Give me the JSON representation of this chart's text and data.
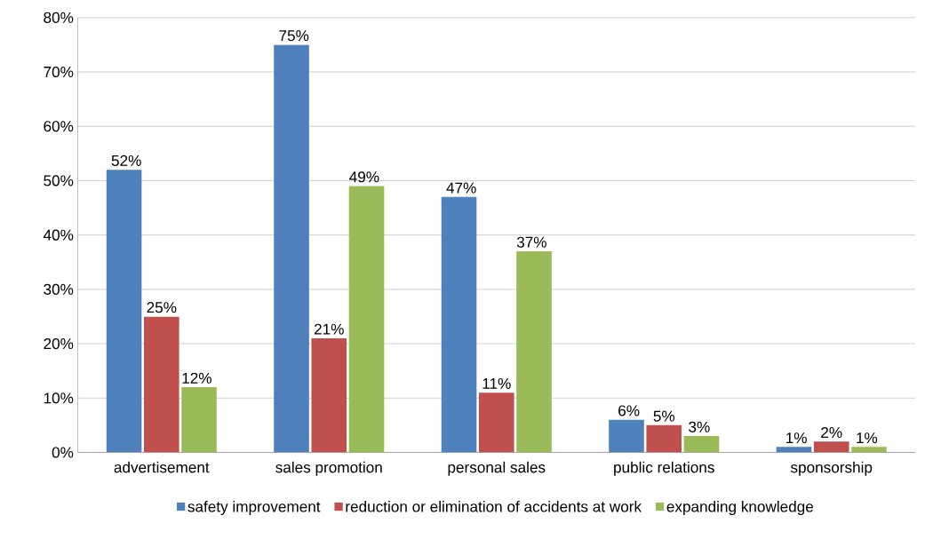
{
  "chart_data": {
    "type": "bar",
    "categories": [
      "advertisement",
      "sales promotion",
      "personal sales",
      "public relations",
      "sponsorship"
    ],
    "series": [
      {
        "name": "safety improvement",
        "color": "#4f81bd",
        "values": [
          52,
          75,
          47,
          6,
          1
        ],
        "value_labels": [
          "52%",
          "75%",
          "47%",
          "6%",
          "1%"
        ]
      },
      {
        "name": "reduction or elimination of accidents at work",
        "color": "#c0504d",
        "values": [
          25,
          21,
          11,
          5,
          2
        ],
        "value_labels": [
          "25%",
          "21%",
          "11%",
          "5%",
          "2%"
        ]
      },
      {
        "name": "expanding knowledge",
        "color": "#9bbb59",
        "values": [
          12,
          49,
          37,
          3,
          1
        ],
        "value_labels": [
          "12%",
          "49%",
          "37%",
          "3%",
          "1%"
        ]
      }
    ],
    "ylim": [
      0,
      80
    ],
    "yticks": [
      {
        "value": 0,
        "label": "0%"
      },
      {
        "value": 10,
        "label": "10%"
      },
      {
        "value": 20,
        "label": "20%"
      },
      {
        "value": 30,
        "label": "30%"
      },
      {
        "value": 40,
        "label": "40%"
      },
      {
        "value": 50,
        "label": "50%"
      },
      {
        "value": 60,
        "label": "60%"
      },
      {
        "value": 70,
        "label": "70%"
      },
      {
        "value": 80,
        "label": "80%"
      }
    ],
    "grid": "y",
    "legend": "bottom"
  }
}
